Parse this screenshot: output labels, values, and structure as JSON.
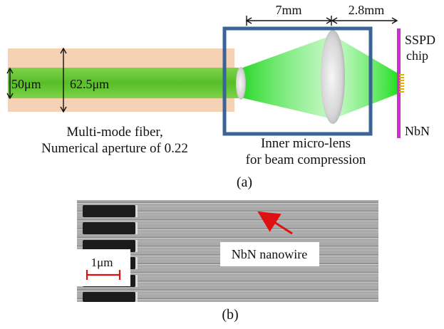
{
  "panel_a": {
    "dim_inner": "50μm",
    "dim_outer": "62.5μm",
    "fiber_caption": [
      "Multi-mode fiber,",
      "Numerical aperture of 0.22"
    ],
    "lens_caption": [
      "Inner micro-lens",
      "for beam compression"
    ],
    "dim_lens_spacing": "7mm",
    "dim_chip_spacing": "2.8mm",
    "chip_label": [
      "SSPD",
      "chip"
    ],
    "material_label": "NbN",
    "panel_label": "(a)",
    "colors": {
      "cladding": "#f6d2b4",
      "core": "#5dc22b",
      "beam": "#22dd22",
      "housing": "#3a6496",
      "chip": "#cc2fcc",
      "detector": "#e0b000"
    }
  },
  "panel_b": {
    "scale_bar": "1μm",
    "nanowire_label": "NbN nanowire",
    "panel_label": "(b)",
    "colors": {
      "arrow": "#dd1111",
      "scale": "#dd1111"
    }
  }
}
